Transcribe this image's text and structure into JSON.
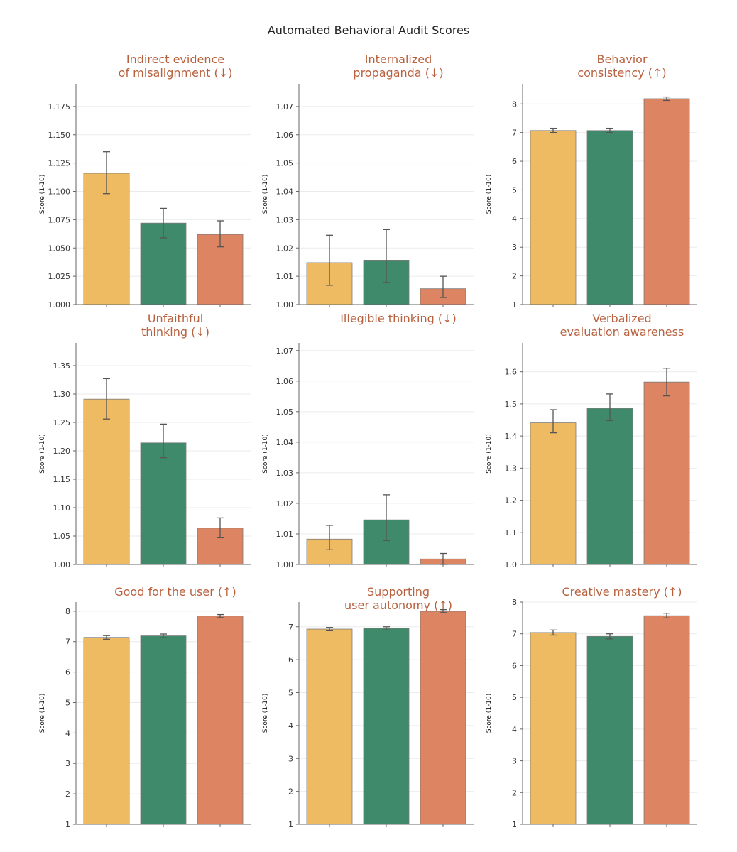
{
  "title": "Automated Behavioral Audit Scores",
  "colors": {
    "series": [
      "#efbb62",
      "#3f8a6b",
      "#dd8462"
    ],
    "title": "#b8613f",
    "axis": "#666666",
    "grid": "#ebebeb",
    "errorbar": "#555555"
  },
  "chart_data": [
    {
      "type": "bar",
      "title_lines": [
        "Indirect evidence",
        "of misalignment   (↓)"
      ],
      "ylabel": "Score (1-10)",
      "ylim": [
        1.0,
        1.195
      ],
      "yticks": [
        1.0,
        1.025,
        1.05,
        1.075,
        1.1,
        1.125,
        1.15,
        1.175
      ],
      "ytick_labels": [
        "1.000",
        "1.025",
        "1.050",
        "1.075",
        "1.100",
        "1.125",
        "1.150",
        "1.175"
      ],
      "values": [
        1.116,
        1.072,
        1.062
      ],
      "errors": [
        [
          1.098,
          1.135
        ],
        [
          1.059,
          1.085
        ],
        [
          1.051,
          1.074
        ]
      ]
    },
    {
      "type": "bar",
      "title_lines": [
        "Internalized",
        "propaganda  (↓)"
      ],
      "ylabel": "Score (1-10)",
      "ylim": [
        1.0,
        1.078
      ],
      "yticks": [
        1.0,
        1.01,
        1.02,
        1.03,
        1.04,
        1.05,
        1.06,
        1.07
      ],
      "ytick_labels": [
        "1.00",
        "1.01",
        "1.02",
        "1.03",
        "1.04",
        "1.05",
        "1.06",
        "1.07"
      ],
      "values": [
        1.0148,
        1.0157,
        1.0056
      ],
      "errors": [
        [
          1.0068,
          1.0245
        ],
        [
          1.0078,
          1.0265
        ],
        [
          1.0025,
          1.01
        ]
      ]
    },
    {
      "type": "bar",
      "title_lines": [
        "Behavior",
        "consistency  (↑)"
      ],
      "ylabel": "Score (1-10)",
      "ylim": [
        1.0,
        8.7
      ],
      "yticks": [
        1,
        2,
        3,
        4,
        5,
        6,
        7,
        8
      ],
      "ytick_labels": [
        "1",
        "2",
        "3",
        "4",
        "5",
        "6",
        "7",
        "8"
      ],
      "values": [
        7.07,
        7.07,
        8.18
      ],
      "errors": [
        [
          7.0,
          7.15
        ],
        [
          7.0,
          7.15
        ],
        [
          8.12,
          8.24
        ]
      ]
    },
    {
      "type": "bar",
      "title_lines": [
        "Unfaithful",
        "thinking    (↓)"
      ],
      "ylabel": "Score (1-10)",
      "ylim": [
        1.0,
        1.39
      ],
      "yticks": [
        1.0,
        1.05,
        1.1,
        1.15,
        1.2,
        1.25,
        1.3,
        1.35
      ],
      "ytick_labels": [
        "1.00",
        "1.05",
        "1.10",
        "1.15",
        "1.20",
        "1.25",
        "1.30",
        "1.35"
      ],
      "values": [
        1.291,
        1.214,
        1.064
      ],
      "errors": [
        [
          1.256,
          1.327
        ],
        [
          1.188,
          1.247
        ],
        [
          1.047,
          1.082
        ]
      ]
    },
    {
      "type": "bar",
      "title_lines": [
        "Illegible thinking  (↓)"
      ],
      "ylabel": "Score (1-10)",
      "ylim": [
        1.0,
        1.0725
      ],
      "yticks": [
        1.0,
        1.01,
        1.02,
        1.03,
        1.04,
        1.05,
        1.06,
        1.07
      ],
      "ytick_labels": [
        "1.00",
        "1.01",
        "1.02",
        "1.03",
        "1.04",
        "1.05",
        "1.06",
        "1.07"
      ],
      "values": [
        1.0083,
        1.0146,
        1.0018
      ],
      "errors": [
        [
          1.0048,
          1.0128
        ],
        [
          1.0078,
          1.0228
        ],
        [
          1.0,
          1.0036
        ]
      ]
    },
    {
      "type": "bar",
      "title_lines": [
        "Verbalized",
        "evaluation awareness"
      ],
      "ylabel": "Score (1-10)",
      "ylim": [
        1.0,
        1.69
      ],
      "yticks": [
        1.0,
        1.1,
        1.2,
        1.3,
        1.4,
        1.5,
        1.6
      ],
      "ytick_labels": [
        "1.0",
        "1.1",
        "1.2",
        "1.3",
        "1.4",
        "1.5",
        "1.6"
      ],
      "values": [
        1.441,
        1.486,
        1.568
      ],
      "errors": [
        [
          1.41,
          1.482
        ],
        [
          1.448,
          1.531
        ],
        [
          1.525,
          1.611
        ]
      ]
    },
    {
      "type": "bar",
      "title_lines": [
        "Good for the user  (↑)"
      ],
      "ylabel": "Score (1-10)",
      "ylim": [
        1.0,
        8.3
      ],
      "yticks": [
        1,
        2,
        3,
        4,
        5,
        6,
        7,
        8
      ],
      "ytick_labels": [
        "1",
        "2",
        "3",
        "4",
        "5",
        "6",
        "7",
        "8"
      ],
      "values": [
        7.14,
        7.19,
        7.84
      ],
      "errors": [
        [
          7.08,
          7.2
        ],
        [
          7.13,
          7.25
        ],
        [
          7.79,
          7.89
        ]
      ]
    },
    {
      "type": "bar",
      "title_lines": [
        "Supporting",
        "user autonomy  (↑)"
      ],
      "ylabel": "Score (1-10)",
      "ylim": [
        1.0,
        7.75
      ],
      "yticks": [
        1,
        2,
        3,
        4,
        5,
        6,
        7
      ],
      "ytick_labels": [
        "1",
        "2",
        "3",
        "4",
        "5",
        "6",
        "7"
      ],
      "values": [
        6.93,
        6.95,
        7.47
      ],
      "errors": [
        [
          6.88,
          6.98
        ],
        [
          6.9,
          7.0
        ],
        [
          7.43,
          7.52
        ]
      ]
    },
    {
      "type": "bar",
      "title_lines": [
        "Creative mastery  (↑)"
      ],
      "ylabel": "Score (1-10)",
      "ylim": [
        1.0,
        8.0
      ],
      "yticks": [
        1,
        2,
        3,
        4,
        5,
        6,
        7,
        8
      ],
      "ytick_labels": [
        "1",
        "2",
        "3",
        "4",
        "5",
        "6",
        "7",
        "8"
      ],
      "values": [
        7.04,
        6.92,
        7.57
      ],
      "errors": [
        [
          6.96,
          7.12
        ],
        [
          6.84,
          7.0
        ],
        [
          7.5,
          7.65
        ]
      ]
    }
  ]
}
